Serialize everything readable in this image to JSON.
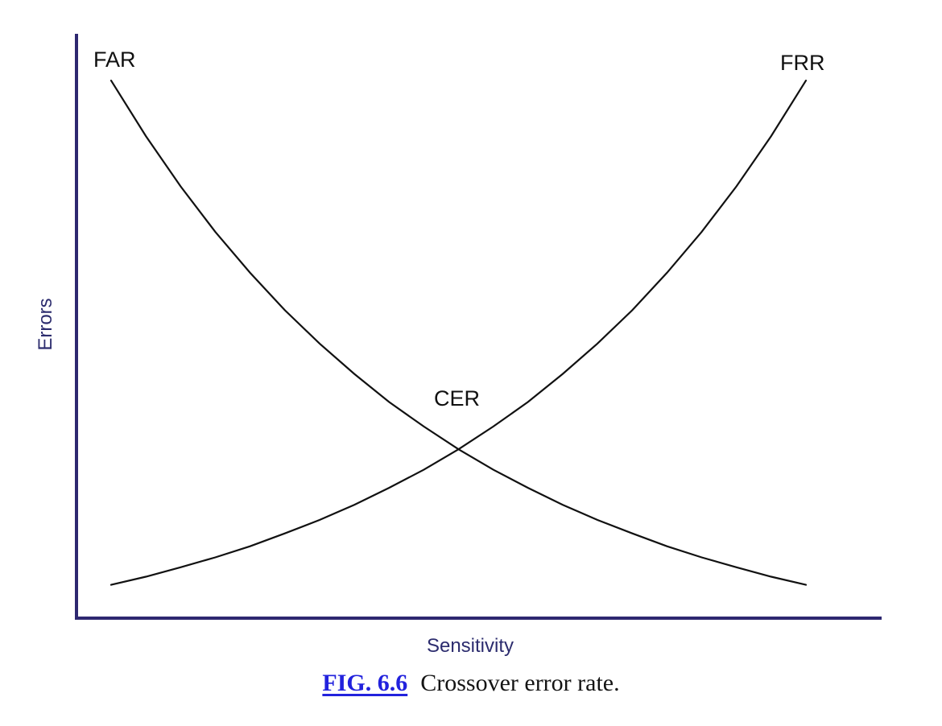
{
  "figure": {
    "caption": {
      "fig_label": "FIG. 6.6",
      "text": "Crossover error rate."
    },
    "colors": {
      "axis": "#2e2870",
      "axis_text": "#2c2c6e",
      "curve": "#111111",
      "link_blue": "#2222dd",
      "caption_text": "#141414",
      "background": "#ffffff"
    }
  },
  "chart_data": {
    "type": "line",
    "title": "",
    "xlabel": "Sensitivity",
    "ylabel": "Errors",
    "grid": false,
    "ticks": false,
    "legend": "inline labels at curve endpoints",
    "x_range_normalized": [
      0,
      1
    ],
    "y_range_normalized": [
      0,
      1
    ],
    "x_normalized": [
      0,
      0.05,
      0.1,
      0.15,
      0.2,
      0.25,
      0.3,
      0.35,
      0.4,
      0.45,
      0.5,
      0.55,
      0.6,
      0.65,
      0.7,
      0.75,
      0.8,
      0.85,
      0.9,
      0.95,
      1
    ],
    "series": [
      {
        "name": "FAR",
        "shape": "exponentially decreasing",
        "values": [
          0.92,
          0.825,
          0.739,
          0.661,
          0.591,
          0.527,
          0.47,
          0.418,
          0.37,
          0.328,
          0.289,
          0.254,
          0.223,
          0.194,
          0.168,
          0.145,
          0.123,
          0.104,
          0.087,
          0.071,
          0.057
        ]
      },
      {
        "name": "FRR",
        "shape": "exponentially increasing",
        "values": [
          0.057,
          0.071,
          0.087,
          0.104,
          0.123,
          0.145,
          0.168,
          0.194,
          0.223,
          0.254,
          0.289,
          0.328,
          0.37,
          0.418,
          0.47,
          0.527,
          0.591,
          0.661,
          0.739,
          0.825,
          0.92
        ]
      }
    ],
    "annotations": [
      {
        "label": "CER",
        "x": 0.5,
        "y": 0.289,
        "note": "intersection of FAR and FRR curves"
      }
    ]
  }
}
